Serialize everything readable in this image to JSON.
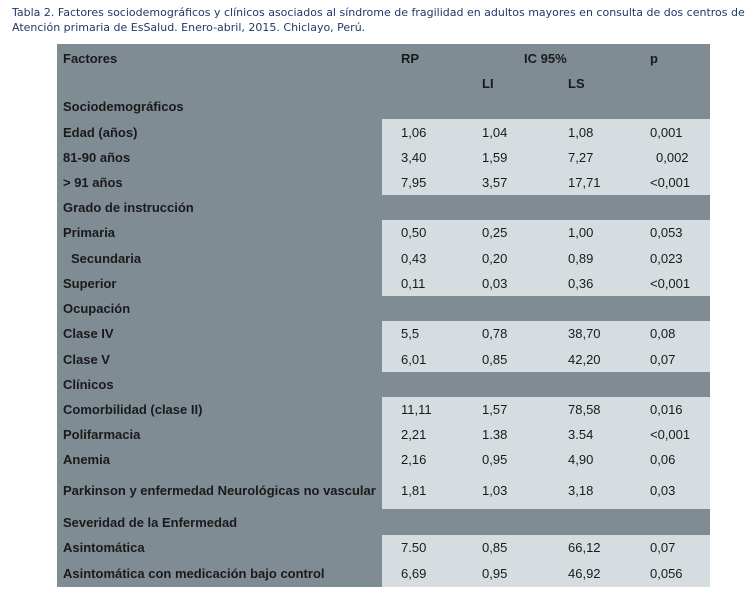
{
  "caption": "Tabla 2. Factores sociodemográficos y clínicos asociados al síndrome de fragilidad en adultos mayores en consulta de dos centros de Atención primaria de EsSalud. Enero-abril, 2015. Chiclayo, Perú.",
  "header": {
    "factores": "Factores",
    "rp": "RP",
    "ic": "IC 95%",
    "p": "p",
    "li": "LI",
    "ls": "LS"
  },
  "rows": [
    {
      "label": "Sociodemográficos",
      "section": true
    },
    {
      "label": "Edad (años)",
      "rp": "1,06",
      "li": "1,04",
      "ls": "1,08",
      "p": "0,001"
    },
    {
      "label": "81-90 años",
      "rp": "3,40",
      "li": "1,59",
      "ls": "7,27",
      "p": "0,002"
    },
    {
      "label": "> 91 años",
      "rp": "7,95",
      "li": "3,57",
      "ls": "17,71",
      "p": "<0,001"
    },
    {
      "label": "Grado  de instrucción",
      "section": true
    },
    {
      "label": "Primaria",
      "rp": "0,50",
      "li": "0,25",
      "ls": "1,00",
      "p": "0,053"
    },
    {
      "label": "Secundaria",
      "rp": "0,43",
      "li": "0,20",
      "ls": "0,89",
      "p": "0,023"
    },
    {
      "label": "Superior",
      "rp": "0,11",
      "li": "0,03",
      "ls": "0,36",
      "p": "<0,001"
    },
    {
      "label": "Ocupación",
      "section": true
    },
    {
      "label": "Clase IV",
      "rp": "5,5",
      "li": "0,78",
      "ls": "38,70",
      "p": "0,08"
    },
    {
      "label": "Clase V",
      "rp": "6,01",
      "li": "0,85",
      "ls": "42,20",
      "p": "0,07"
    },
    {
      "label": "Clínicos",
      "section": true
    },
    {
      "label": "Comorbilidad (clase II)",
      "rp": "11,11",
      "li": "1,57",
      "ls": "78,58",
      "p": "0,016"
    },
    {
      "label": "Polifarmacia",
      "rp": "2,21",
      "li": "1.38",
      "ls": "3.54",
      "p": "<0,001"
    },
    {
      "label": "Anemia",
      "rp": "2,16",
      "li": "0,95",
      "ls": "4,90",
      "p": "0,06"
    },
    {
      "label": "Parkinson y enfermedad Neurológicas no vascular",
      "rp": "1,81",
      "li": "1,03",
      "ls": "3,18",
      "p": "0,03"
    },
    {
      "label": "Severidad de la Enfermedad",
      "section": true
    },
    {
      "label": "Asintomática",
      "rp": "7.50",
      "li": "0,85",
      "ls": "66,12",
      "p": "0,07"
    },
    {
      "label": "Asintomática con medicación bajo control",
      "rp": "6,69",
      "li": "0,95",
      "ls": "46,92",
      "p": "0,056"
    }
  ]
}
